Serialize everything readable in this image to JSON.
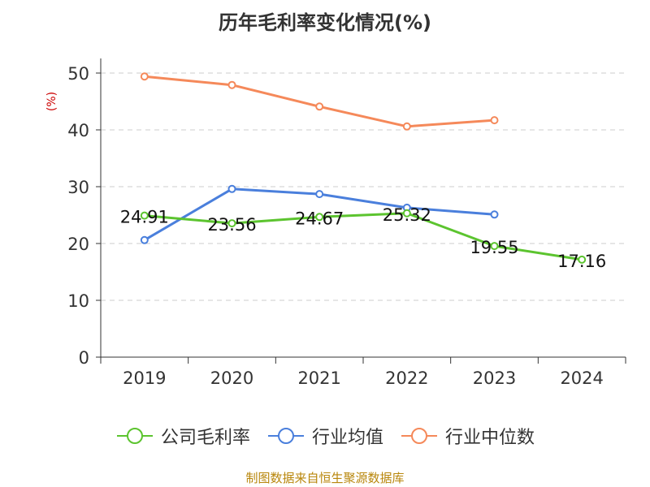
{
  "chart_data": {
    "type": "line",
    "title": "历年毛利率变化情况(%)",
    "ylabel": "(%)",
    "xlabel": "",
    "categories": [
      "2019",
      "2020",
      "2021",
      "2022",
      "2023",
      "2024"
    ],
    "ylim": [
      0,
      50
    ],
    "yticks": [
      0,
      10,
      20,
      30,
      40,
      50
    ],
    "grid": true,
    "legend_position": "bottom",
    "series": [
      {
        "name": "公司毛利率",
        "color": "#5cc42f",
        "values": [
          24.91,
          23.56,
          24.67,
          25.32,
          19.55,
          17.16
        ],
        "labels": [
          "24.91",
          "23.56",
          "24.67",
          "25.32",
          "19.55",
          "17.16"
        ]
      },
      {
        "name": "行业均值",
        "color": "#4a7fdc",
        "values": [
          20.6,
          29.6,
          28.7,
          26.3,
          25.1,
          null
        ]
      },
      {
        "name": "行业中位数",
        "color": "#f5895a",
        "values": [
          49.4,
          47.9,
          44.1,
          40.6,
          41.7,
          null
        ]
      }
    ]
  },
  "footer": {
    "source": "制图数据来自恒生聚源数据库"
  }
}
